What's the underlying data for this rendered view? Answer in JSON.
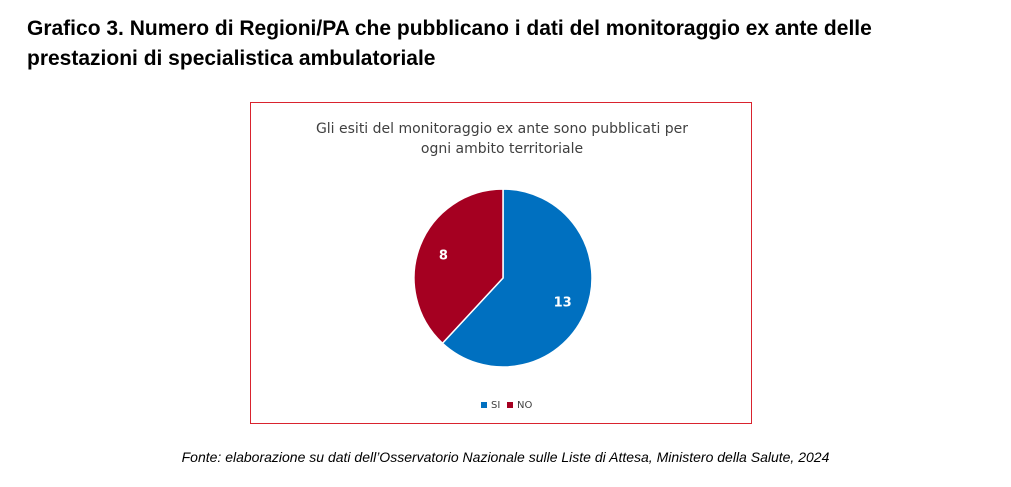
{
  "heading": {
    "line1": "Grafico 3. Numero di Regioni/PA che pubblicano i dati del monitoraggio ex ante delle",
    "line2": "prestazioni di specialistica ambulatoriale"
  },
  "chart_data": {
    "type": "pie",
    "title_lines": [
      "Gli esiti del monitoraggio ex ante sono pubblicati per",
      "ogni ambito territoriale"
    ],
    "categories": [
      "SI",
      "NO"
    ],
    "values": [
      13,
      8
    ],
    "colors": [
      "#0070c0",
      "#a50021"
    ],
    "legend_position": "bottom",
    "data_labels": true
  },
  "source": "Fonte: elaborazione su dati dell’Osservatorio Nazionale sulle Liste di Attesa, Ministero della Salute, 2024"
}
